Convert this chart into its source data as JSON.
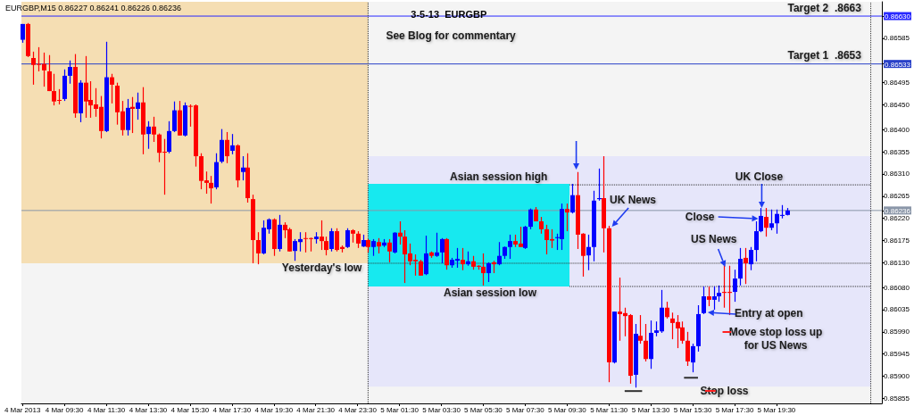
{
  "chart_data": {
    "type": "candlestick",
    "title": "3-5-13  EURGBP",
    "annotations": [
      "EURGBP,M15 0.86227 0.86241 0.86226 0.86236",
      "See Blog for commentary",
      "Target 2  .8663",
      "Target 1  .8653",
      "Asian session high",
      "Asian session low",
      "Yesterday's low",
      "UK News",
      "UK Close",
      "Close",
      "US News",
      "Entry at open",
      "Move stop loss up\nfor US News",
      "Stop loss"
    ],
    "x": [
      "2013-03-04T07:30",
      "2013-03-04T07:45",
      "2013-03-04T08:00",
      "2013-03-04T08:15",
      "2013-03-04T08:30",
      "2013-03-04T08:45",
      "2013-03-04T09:00",
      "2013-03-04T09:15",
      "2013-03-04T09:30",
      "2013-03-04T09:45",
      "2013-03-04T10:00",
      "2013-03-04T10:15",
      "2013-03-04T10:30",
      "2013-03-04T10:45",
      "2013-03-04T11:00",
      "2013-03-04T11:15",
      "2013-03-04T11:30",
      "2013-03-04T11:45",
      "2013-03-04T12:00",
      "2013-03-04T12:15",
      "2013-03-04T12:30",
      "2013-03-04T12:45",
      "2013-03-04T13:00",
      "2013-03-04T13:15",
      "2013-03-04T13:30",
      "2013-03-04T13:45",
      "2013-03-04T14:00",
      "2013-03-04T14:15",
      "2013-03-04T14:30",
      "2013-03-04T14:45",
      "2013-03-04T15:00",
      "2013-03-04T15:15",
      "2013-03-04T15:30",
      "2013-03-04T15:45",
      "2013-03-04T16:00",
      "2013-03-04T16:15",
      "2013-03-04T16:30",
      "2013-03-04T16:45",
      "2013-03-04T17:00",
      "2013-03-04T17:15",
      "2013-03-04T17:30",
      "2013-03-04T17:45",
      "2013-03-04T18:00",
      "2013-03-04T18:15",
      "2013-03-04T18:30",
      "2013-03-04T18:45",
      "2013-03-04T19:00",
      "2013-03-04T19:15",
      "2013-03-04T19:30",
      "2013-03-04T19:45",
      "2013-03-04T20:00",
      "2013-03-04T20:15",
      "2013-03-04T20:30",
      "2013-03-04T20:45",
      "2013-03-04T21:00",
      "2013-03-04T21:15",
      "2013-03-04T21:30",
      "2013-03-04T21:45",
      "2013-03-04T22:00",
      "2013-03-04T22:15",
      "2013-03-04T22:30",
      "2013-03-04T22:45",
      "2013-03-04T23:00",
      "2013-03-04T23:15",
      "2013-03-04T23:30",
      "2013-03-04T23:45",
      "2013-03-05T00:00",
      "2013-03-05T00:15",
      "2013-03-05T00:30",
      "2013-03-05T00:45",
      "2013-03-05T01:00",
      "2013-03-05T01:15",
      "2013-03-05T01:30",
      "2013-03-05T01:45",
      "2013-03-05T02:00",
      "2013-03-05T02:15",
      "2013-03-05T02:30",
      "2013-03-05T02:45",
      "2013-03-05T03:00",
      "2013-03-05T03:15",
      "2013-03-05T03:30",
      "2013-03-05T03:45",
      "2013-03-05T04:00",
      "2013-03-05T04:15",
      "2013-03-05T04:30",
      "2013-03-05T04:45",
      "2013-03-05T05:00",
      "2013-03-05T05:15",
      "2013-03-05T05:30",
      "2013-03-05T05:45",
      "2013-03-05T06:00",
      "2013-03-05T06:15",
      "2013-03-05T06:30",
      "2013-03-05T06:45",
      "2013-03-05T07:00",
      "2013-03-05T07:15",
      "2013-03-05T07:30",
      "2013-03-05T07:45",
      "2013-03-05T08:00",
      "2013-03-05T08:15",
      "2013-03-05T08:30",
      "2013-03-05T08:45",
      "2013-03-05T09:00",
      "2013-03-05T09:15",
      "2013-03-05T09:30",
      "2013-03-05T09:45",
      "2013-03-05T10:00",
      "2013-03-05T10:15",
      "2013-03-05T10:30",
      "2013-03-05T10:45",
      "2013-03-05T11:00",
      "2013-03-05T11:15",
      "2013-03-05T11:30",
      "2013-03-05T11:45",
      "2013-03-05T12:00",
      "2013-03-05T12:15",
      "2013-03-05T12:30",
      "2013-03-05T12:45",
      "2013-03-05T13:00",
      "2013-03-05T13:15",
      "2013-03-05T13:30",
      "2013-03-05T13:45",
      "2013-03-05T14:00",
      "2013-03-05T14:15",
      "2013-03-05T14:30",
      "2013-03-05T14:45",
      "2013-03-05T15:00",
      "2013-03-05T15:15",
      "2013-03-05T15:30",
      "2013-03-05T15:45",
      "2013-03-05T16:00",
      "2013-03-05T16:15",
      "2013-03-05T16:30",
      "2013-03-05T16:45",
      "2013-03-05T17:00",
      "2013-03-05T17:15",
      "2013-03-05T17:30",
      "2013-03-05T17:45",
      "2013-03-05T18:00",
      "2013-03-05T18:15",
      "2013-03-05T18:30",
      "2013-03-05T18:45",
      "2013-03-05T19:00",
      "2013-03-05T19:15",
      "2013-03-05T19:30",
      "2013-03-05T19:45",
      "2013-03-05T20:00"
    ],
    "ohlc": [
      [
        0.86582,
        0.86614,
        0.86576,
        0.86614
      ],
      [
        0.86614,
        0.86616,
        0.86547,
        0.86549
      ],
      [
        0.86545,
        0.86558,
        0.86491,
        0.86531
      ],
      [
        0.86533,
        0.86567,
        0.86518,
        0.86532
      ],
      [
        0.86533,
        0.86556,
        0.86487,
        0.8652
      ],
      [
        0.86518,
        0.86551,
        0.86478,
        0.86478
      ],
      [
        0.86478,
        0.86513,
        0.86449,
        0.86457
      ],
      [
        0.8646,
        0.86482,
        0.86451,
        0.86459
      ],
      [
        0.86462,
        0.86522,
        0.86458,
        0.86509
      ],
      [
        0.86509,
        0.8654,
        0.86493,
        0.86527
      ],
      [
        0.86527,
        0.86553,
        0.86424,
        0.86433
      ],
      [
        0.86433,
        0.865,
        0.86415,
        0.86495
      ],
      [
        0.86495,
        0.86549,
        0.86424,
        0.86457
      ],
      [
        0.8646,
        0.86498,
        0.86424,
        0.86449
      ],
      [
        0.86451,
        0.86484,
        0.86426,
        0.86442
      ],
      [
        0.86446,
        0.86468,
        0.86382,
        0.86397
      ],
      [
        0.86397,
        0.86578,
        0.86395,
        0.86506
      ],
      [
        0.86506,
        0.86513,
        0.86453,
        0.86491
      ],
      [
        0.86489,
        0.86495,
        0.8641,
        0.86435
      ],
      [
        0.86437,
        0.86458,
        0.86388,
        0.86399
      ],
      [
        0.86399,
        0.86462,
        0.86388,
        0.86444
      ],
      [
        0.86446,
        0.86466,
        0.86393,
        0.86442
      ],
      [
        0.86442,
        0.86475,
        0.8642,
        0.86455
      ],
      [
        0.86455,
        0.86486,
        0.8635,
        0.8639
      ],
      [
        0.86391,
        0.86417,
        0.86361,
        0.86406
      ],
      [
        0.86406,
        0.86426,
        0.86375,
        0.8639
      ],
      [
        0.8639,
        0.86392,
        0.86334,
        0.86353
      ],
      [
        0.86355,
        0.86381,
        0.86268,
        0.86354
      ],
      [
        0.86355,
        0.86417,
        0.86352,
        0.86397
      ],
      [
        0.86397,
        0.86457,
        0.86395,
        0.86439
      ],
      [
        0.86439,
        0.86458,
        0.86388,
        0.86388
      ],
      [
        0.86388,
        0.86455,
        0.86386,
        0.86449
      ],
      [
        0.86448,
        0.86451,
        0.86406,
        0.86447
      ],
      [
        0.86449,
        0.86451,
        0.86325,
        0.86346
      ],
      [
        0.86346,
        0.86352,
        0.86279,
        0.86296
      ],
      [
        0.86297,
        0.86315,
        0.8627,
        0.86292
      ],
      [
        0.86292,
        0.86306,
        0.8625,
        0.86281
      ],
      [
        0.86283,
        0.86352,
        0.86279,
        0.86334
      ],
      [
        0.86335,
        0.86401,
        0.86332,
        0.86379
      ],
      [
        0.86379,
        0.86395,
        0.86332,
        0.86346
      ],
      [
        0.86357,
        0.86391,
        0.8635,
        0.86368
      ],
      [
        0.86368,
        0.8637,
        0.86283,
        0.86297
      ],
      [
        0.86314,
        0.86346,
        0.86297,
        0.86323
      ],
      [
        0.86323,
        0.86352,
        0.86252,
        0.86261
      ],
      [
        0.86259,
        0.86268,
        0.86129,
        0.86176
      ],
      [
        0.86176,
        0.86192,
        0.86127,
        0.86149
      ],
      [
        0.86149,
        0.86216,
        0.86147,
        0.86201
      ],
      [
        0.86198,
        0.8622,
        0.86189,
        0.86218
      ],
      [
        0.86218,
        0.8622,
        0.86144,
        0.86158
      ],
      [
        0.86158,
        0.86227,
        0.86153,
        0.86207
      ],
      [
        0.86207,
        0.86212,
        0.8618,
        0.86196
      ],
      [
        0.86198,
        0.86201,
        0.86153,
        0.86153
      ],
      [
        0.86154,
        0.86178,
        0.86134,
        0.86174
      ],
      [
        0.86172,
        0.86192,
        0.86153,
        0.86178
      ],
      [
        0.8618,
        0.86192,
        0.86151,
        0.86179
      ],
      [
        0.8618,
        0.86181,
        0.86153,
        0.86179
      ],
      [
        0.86178,
        0.86192,
        0.86169,
        0.86183
      ],
      [
        0.86183,
        0.86216,
        0.86156,
        0.86174
      ],
      [
        0.86174,
        0.86183,
        0.86145,
        0.86156
      ],
      [
        0.86158,
        0.862,
        0.86153,
        0.86194
      ],
      [
        0.86194,
        0.862,
        0.86153,
        0.86156
      ],
      [
        0.86162,
        0.86165,
        0.86151,
        0.86158
      ],
      [
        0.86162,
        0.862,
        0.8616,
        0.86196
      ],
      [
        0.86196,
        0.86198,
        0.86171,
        0.86189
      ],
      [
        0.86189,
        0.86194,
        0.8616,
        0.86169
      ],
      [
        0.86163,
        0.86187,
        0.86162,
        0.86176
      ],
      [
        0.86176,
        0.86178,
        0.86151,
        0.86162
      ],
      [
        0.86162,
        0.86178,
        0.86144,
        0.86174
      ],
      [
        0.86172,
        0.8618,
        0.86149,
        0.86163
      ],
      [
        0.86165,
        0.86178,
        0.86162,
        0.86171
      ],
      [
        0.86171,
        0.86178,
        0.86131,
        0.86153
      ],
      [
        0.86151,
        0.86192,
        0.86149,
        0.86191
      ],
      [
        0.86191,
        0.86214,
        0.86167,
        0.86183
      ],
      [
        0.86183,
        0.86196,
        0.86089,
        0.86147
      ],
      [
        0.86149,
        0.86169,
        0.86125,
        0.86133
      ],
      [
        0.86136,
        0.86147,
        0.86104,
        0.86133
      ],
      [
        0.86133,
        0.86136,
        0.86104,
        0.86104
      ],
      [
        0.86107,
        0.86185,
        0.86105,
        0.86149
      ],
      [
        0.86151,
        0.86153,
        0.8614,
        0.86144
      ],
      [
        0.86144,
        0.86191,
        0.86142,
        0.86151
      ],
      [
        0.86151,
        0.8618,
        0.86129,
        0.86178
      ],
      [
        0.86178,
        0.8618,
        0.86116,
        0.86125
      ],
      [
        0.86125,
        0.8614,
        0.8612,
        0.86136
      ],
      [
        0.86134,
        0.8616,
        0.8612,
        0.86138
      ],
      [
        0.86136,
        0.8616,
        0.86115,
        0.86127
      ],
      [
        0.86127,
        0.86153,
        0.86124,
        0.86133
      ],
      [
        0.86133,
        0.86144,
        0.86116,
        0.86122
      ],
      [
        0.86124,
        0.86125,
        0.86116,
        0.86122
      ],
      [
        0.86122,
        0.86149,
        0.86084,
        0.86109
      ],
      [
        0.86109,
        0.86131,
        0.86091,
        0.86129
      ],
      [
        0.86131,
        0.86134,
        0.86109,
        0.86127
      ],
      [
        0.86127,
        0.86172,
        0.86125,
        0.86144
      ],
      [
        0.86144,
        0.86163,
        0.86138,
        0.86162
      ],
      [
        0.86162,
        0.86187,
        0.86138,
        0.86174
      ],
      [
        0.86174,
        0.86187,
        0.86162,
        0.86167
      ],
      [
        0.86169,
        0.86203,
        0.86162,
        0.86162
      ],
      [
        0.8616,
        0.86205,
        0.86158,
        0.86203
      ],
      [
        0.86203,
        0.8624,
        0.86198,
        0.86238
      ],
      [
        0.86238,
        0.86243,
        0.86214,
        0.86214
      ],
      [
        0.86214,
        0.86223,
        0.86189,
        0.86198
      ],
      [
        0.86198,
        0.86207,
        0.86147,
        0.86176
      ],
      [
        0.86178,
        0.86198,
        0.8616,
        0.86175
      ],
      [
        0.8618,
        0.86189,
        0.86156,
        0.86182
      ],
      [
        0.86178,
        0.8625,
        0.86156,
        0.86239
      ],
      [
        0.86239,
        0.8625,
        0.86194,
        0.86232
      ],
      [
        0.86232,
        0.8629,
        0.8623,
        0.86267
      ],
      [
        0.86267,
        0.86314,
        0.86158,
        0.86187
      ],
      [
        0.86189,
        0.8619,
        0.86102,
        0.86144
      ],
      [
        0.86145,
        0.86187,
        0.86115,
        0.86162
      ],
      [
        0.86162,
        0.86276,
        0.86133,
        0.86256
      ],
      [
        0.86259,
        0.86321,
        0.86256,
        0.86261
      ],
      [
        0.86261,
        0.86346,
        0.86151,
        0.862
      ],
      [
        0.862,
        0.86205,
        0.85888,
        0.85928
      ],
      [
        0.85928,
        0.86031,
        0.85926,
        0.86031
      ],
      [
        0.86031,
        0.861,
        0.85972,
        0.86026
      ],
      [
        0.86028,
        0.86039,
        0.85981,
        0.86022
      ],
      [
        0.86024,
        0.86026,
        0.85885,
        0.85901
      ],
      [
        0.85903,
        0.86006,
        0.85877,
        0.85986
      ],
      [
        0.85982,
        0.86024,
        0.85966,
        0.85972
      ],
      [
        0.85972,
        0.86006,
        0.8593,
        0.85935
      ],
      [
        0.85935,
        0.86013,
        0.85915,
        0.85988
      ],
      [
        0.85988,
        0.86011,
        0.85981,
        0.85993
      ],
      [
        0.85991,
        0.86075,
        0.85988,
        0.86039
      ],
      [
        0.86039,
        0.86051,
        0.86017,
        0.8602
      ],
      [
        0.86017,
        0.86029,
        0.85975,
        0.86008
      ],
      [
        0.8601,
        0.86024,
        0.85957,
        0.85997
      ],
      [
        0.85999,
        0.86011,
        0.85966,
        0.85972
      ],
      [
        0.85972,
        0.8599,
        0.85921,
        0.8593
      ],
      [
        0.85928,
        0.85966,
        0.85908,
        0.85961
      ],
      [
        0.85961,
        0.86044,
        0.8595,
        0.86026
      ],
      [
        0.86028,
        0.86082,
        0.86026,
        0.86062
      ],
      [
        0.86062,
        0.86082,
        0.86042,
        0.86055
      ],
      [
        0.86055,
        0.86082,
        0.86035,
        0.86062
      ],
      [
        0.86062,
        0.86084,
        0.86051,
        0.86069
      ],
      [
        0.86071,
        0.86127,
        0.86039,
        0.86069
      ],
      [
        0.86071,
        0.86124,
        0.86024,
        0.86069
      ],
      [
        0.86071,
        0.86116,
        0.86051,
        0.86098
      ],
      [
        0.86098,
        0.8616,
        0.86084,
        0.86138
      ],
      [
        0.8614,
        0.8616,
        0.86087,
        0.86129
      ],
      [
        0.86127,
        0.86162,
        0.86115,
        0.86156
      ],
      [
        0.86156,
        0.86214,
        0.86133,
        0.86194
      ],
      [
        0.86194,
        0.86241,
        0.86192,
        0.86225
      ],
      [
        0.86223,
        0.86241,
        0.86183,
        0.86201
      ],
      [
        0.86201,
        0.86238,
        0.86196,
        0.8621
      ],
      [
        0.8621,
        0.86238,
        0.86189,
        0.86229
      ],
      [
        0.86225,
        0.86247,
        0.8622,
        0.86227
      ],
      [
        0.86227,
        0.86241,
        0.86226,
        0.86236
      ]
    ],
    "colors": [
      "#0000ff",
      "#ff0000",
      "#ff0000",
      "#ff0000",
      "#ff0000",
      "#ff0000",
      "#ff0000",
      "#ff0000",
      "#0000ff",
      "#0000ff",
      "#ff0000",
      "#0000ff",
      "#ff0000",
      "#ff0000",
      "#ff0000",
      "#ff0000",
      "#0000ff",
      "#ff0000",
      "#ff0000",
      "#ff0000",
      "#0000ff",
      "#ff0000",
      "#0000ff",
      "#ff0000",
      "#0000ff",
      "#ff0000",
      "#ff0000",
      "#ff0000",
      "#0000ff",
      "#0000ff",
      "#ff0000",
      "#0000ff",
      "#ff0000",
      "#ff0000",
      "#ff0000",
      "#ff0000",
      "#ff0000",
      "#0000ff",
      "#0000ff",
      "#ff0000",
      "#0000ff",
      "#ff0000",
      "#0000ff",
      "#ff0000",
      "#ff0000",
      "#ff0000",
      "#0000ff",
      "#0000ff",
      "#ff0000",
      "#0000ff",
      "#ff0000",
      "#ff0000",
      "#0000ff",
      "#0000ff",
      "#ff0000",
      "#ff0000",
      "#0000ff",
      "#ff0000",
      "#ff0000",
      "#0000ff",
      "#ff0000",
      "#ff0000",
      "#0000ff",
      "#ff0000",
      "#ff0000",
      "#0000ff",
      "#ff0000",
      "#0000ff",
      "#ff0000",
      "#0000ff",
      "#ff0000",
      "#0000ff",
      "#ff0000",
      "#ff0000",
      "#ff0000",
      "#ff0000",
      "#ff0000",
      "#0000ff",
      "#ff0000",
      "#0000ff",
      "#0000ff",
      "#ff0000",
      "#0000ff",
      "#0000ff",
      "#ff0000",
      "#0000ff",
      "#ff0000",
      "#ff0000",
      "#ff0000",
      "#0000ff",
      "#ff0000",
      "#0000ff",
      "#0000ff",
      "#0000ff",
      "#ff0000",
      "#ff0000",
      "#0000ff",
      "#0000ff",
      "#ff0000",
      "#ff0000",
      "#ff0000",
      "#ff0000",
      "#0000ff",
      "#0000ff",
      "#ff0000",
      "#0000ff",
      "#ff0000",
      "#ff0000",
      "#0000ff",
      "#0000ff",
      "#0000ff",
      "#ff0000",
      "#ff0000",
      "#0000ff",
      "#ff0000",
      "#ff0000",
      "#ff0000",
      "#0000ff",
      "#ff0000",
      "#ff0000",
      "#0000ff",
      "#0000ff",
      "#0000ff",
      "#ff0000",
      "#ff0000",
      "#ff0000",
      "#ff0000",
      "#ff0000",
      "#0000ff",
      "#0000ff",
      "#0000ff",
      "#ff0000",
      "#0000ff",
      "#0000ff",
      "#ff0000",
      "#ff0000",
      "#0000ff",
      "#0000ff",
      "#ff0000",
      "#0000ff",
      "#0000ff",
      "#0000ff",
      "#ff0000",
      "#0000ff",
      "#0000ff",
      "#0000ff",
      "#0000ff"
    ],
    "xlim": [
      "2013-03-04T07:27",
      "2013-03-06T00:32"
    ],
    "xticks": [
      {
        "value": "2013-03-04T07:30",
        "label": "4 Mar 2013"
      },
      {
        "value": "2013-03-04T09:30",
        "label": "4 Mar 09:30"
      },
      {
        "value": "2013-03-04T11:30",
        "label": "4 Mar 11:30"
      },
      {
        "value": "2013-03-04T13:30",
        "label": "4 Mar 13:30"
      },
      {
        "value": "2013-03-04T15:30",
        "label": "4 Mar 15:30"
      },
      {
        "value": "2013-03-04T17:30",
        "label": "4 Mar 17:30"
      },
      {
        "value": "2013-03-04T19:30",
        "label": "4 Mar 19:30"
      },
      {
        "value": "2013-03-04T21:30",
        "label": "4 Mar 21:30"
      },
      {
        "value": "2013-03-04T23:30",
        "label": "4 Mar 23:30"
      },
      {
        "value": "2013-03-05T01:30",
        "label": "5 Mar 01:30"
      },
      {
        "value": "2013-03-05T03:30",
        "label": "5 Mar 03:30"
      },
      {
        "value": "2013-03-05T05:30",
        "label": "5 Mar 05:30"
      },
      {
        "value": "2013-03-05T07:30",
        "label": "5 Mar 07:30"
      },
      {
        "value": "2013-03-05T09:30",
        "label": "5 Mar 09:30"
      },
      {
        "value": "2013-03-05T11:30",
        "label": "5 Mar 11:30"
      },
      {
        "value": "2013-03-05T13:30",
        "label": "5 Mar 13:30"
      },
      {
        "value": "2013-03-05T15:30",
        "label": "5 Mar 15:30"
      },
      {
        "value": "2013-03-05T17:30",
        "label": "5 Mar 17:30"
      },
      {
        "value": "2013-03-05T19:30",
        "label": "5 Mar 19:30"
      }
    ],
    "ylim": [
      0.85845,
      0.86659
    ],
    "yticks": [
      {
        "value": 0.8663,
        "label": "0.86630"
      },
      {
        "value": 0.86533,
        "label": "0.86533"
      },
      {
        "value": 0.86236,
        "label": "0.86236"
      },
      {
        "value": 0.85855,
        "label": "0.85855"
      },
      {
        "value": 0.859,
        "label": "0.85900"
      },
      {
        "value": 0.85945,
        "label": "0.85945"
      },
      {
        "value": 0.8599,
        "label": "0.85990"
      },
      {
        "value": 0.86035,
        "label": "0.86035"
      },
      {
        "value": 0.8608,
        "label": "0.86080"
      },
      {
        "value": 0.8613,
        "label": "0.86130"
      },
      {
        "value": 0.86175,
        "label": "0.86175"
      },
      {
        "value": 0.8622,
        "label": "0.86220"
      },
      {
        "value": 0.86265,
        "label": "0.86265"
      },
      {
        "value": 0.8631,
        "label": "0.86310"
      },
      {
        "value": 0.86355,
        "label": "0.86355"
      },
      {
        "value": 0.864,
        "label": "0.86400"
      },
      {
        "value": 0.8645,
        "label": "0.86450"
      },
      {
        "value": 0.86495,
        "label": "0.86495"
      },
      {
        "value": 0.86585,
        "label": "0.86585"
      }
    ],
    "series": [
      {
        "type": "line",
        "x": [
          "2013-03-04T07:27",
          "2013-03-05T00:00"
        ],
        "values": [
          null,
          null
        ],
        "upper": [
          0.86659,
          0.86659
        ],
        "lower": [
          0.86129,
          0.86129
        ],
        "color": "#f5deb3"
      },
      {
        "type": "line",
        "x": [
          "2013-03-05T00:00",
          "2013-03-06T00:00"
        ],
        "values": [
          null,
          null
        ],
        "upper": [
          0.86346,
          0.86346
        ],
        "lower": [
          0.85879,
          0.85879
        ],
        "color": "#e6e6fa"
      },
      {
        "type": "line",
        "x": [
          "2013-03-05T00:00",
          "2013-03-05T09:37"
        ],
        "values": [
          null,
          null
        ],
        "upper": [
          0.8629,
          0.8629
        ],
        "lower": [
          0.86082,
          0.86082
        ],
        "color": "#17e9ef"
      },
      {
        "type": "line",
        "x": [
          "2013-03-05T09:37",
          "2013-03-06T00:00"
        ],
        "values": [
          0.86288,
          0.86288
        ],
        "color": "#303030",
        "line_style": "dotted"
      },
      {
        "type": "line",
        "x": [
          "2013-03-05T00:00",
          "2013-03-06T00:00"
        ],
        "values": [
          0.86129,
          0.86129
        ],
        "color": "#303030",
        "line_style": "dotted"
      },
      {
        "type": "line",
        "x": [
          "2013-03-05T09:37",
          "2013-03-06T00:00"
        ],
        "values": [
          0.86082,
          0.86082
        ],
        "color": "#303030",
        "line_style": "dotted"
      },
      {
        "type": "line",
        "x": [
          "2013-03-05T12:15",
          "2013-03-05T13:05"
        ],
        "values": [
          0.8587,
          0.8587
        ],
        "color": "#303030",
        "line_style": "solid"
      },
      {
        "type": "line",
        "x": [
          "2013-03-05T15:05",
          "2013-03-05T15:45"
        ],
        "values": [
          0.85897,
          0.85897
        ],
        "color": "#303030",
        "line_style": "solid"
      }
    ],
    "ref_lines": [
      {
        "axis": "y",
        "value": 0.8663,
        "color": "#2828ff"
      },
      {
        "axis": "y",
        "value": 0.86533,
        "color": "#2840c8"
      },
      {
        "axis": "y",
        "value": 0.86236,
        "color": "#8a96a8"
      },
      {
        "axis": "x",
        "value": "2013-03-05T00:00",
        "color": "#303030",
        "line_style": "dotted"
      },
      {
        "axis": "x",
        "value": "2013-03-06T00:00",
        "color": "#303030",
        "line_style": "dotted"
      }
    ]
  }
}
